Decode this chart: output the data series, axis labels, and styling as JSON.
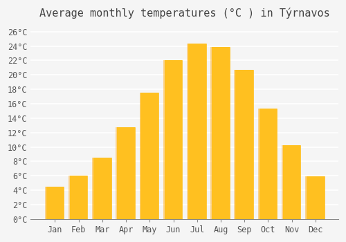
{
  "title": "Average monthly temperatures (°C ) in Týrnavos",
  "months": [
    "Jan",
    "Feb",
    "Mar",
    "Apr",
    "May",
    "Jun",
    "Jul",
    "Aug",
    "Sep",
    "Oct",
    "Nov",
    "Dec"
  ],
  "values": [
    4.5,
    6.0,
    8.5,
    12.7,
    17.5,
    22.0,
    24.3,
    23.9,
    20.7,
    15.3,
    10.2,
    5.9
  ],
  "bar_color_top": "#FFC020",
  "bar_color_bottom": "#FFB020",
  "ylim": [
    0,
    27
  ],
  "yticks": [
    0,
    2,
    4,
    6,
    8,
    10,
    12,
    14,
    16,
    18,
    20,
    22,
    24,
    26
  ],
  "ytick_labels": [
    "0°C",
    "2°C",
    "4°C",
    "6°C",
    "8°C",
    "10°C",
    "12°C",
    "14°C",
    "16°C",
    "18°C",
    "20°C",
    "22°C",
    "24°C",
    "26°C"
  ],
  "background_color": "#f5f5f5",
  "grid_color": "#ffffff",
  "title_fontsize": 11,
  "tick_fontsize": 8.5,
  "bar_edge_color": "#E8A000"
}
